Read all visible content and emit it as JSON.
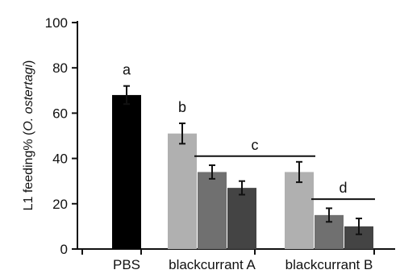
{
  "chart_data": {
    "type": "bar",
    "title": "",
    "xlabel": "",
    "ylabel": "L1 feeding% (",
    "ylabel_italic": "O. ostertagi",
    "ylabel_close": ")",
    "ylim": [
      0,
      100
    ],
    "yticks": [
      "0",
      "20",
      "40",
      "60",
      "80",
      "100"
    ],
    "groups": [
      {
        "label": "PBS"
      },
      {
        "label": "blackcurrant A"
      },
      {
        "label": "blackcurrant B"
      }
    ],
    "bars": [
      {
        "group": 0,
        "value": 68,
        "error": 4,
        "color": "#000000"
      },
      {
        "group": 1,
        "value": 51,
        "error": 4.5,
        "color": "#b0b0b0"
      },
      {
        "group": 1,
        "value": 34,
        "error": 3,
        "color": "#707070"
      },
      {
        "group": 1,
        "value": 27,
        "error": 3,
        "color": "#444444"
      },
      {
        "group": 2,
        "value": 34,
        "error": 4.5,
        "color": "#b0b0b0"
      },
      {
        "group": 2,
        "value": 15,
        "error": 3,
        "color": "#707070"
      },
      {
        "group": 2,
        "value": 10,
        "error": 3.5,
        "color": "#444444"
      }
    ],
    "significance": [
      {
        "label": "a",
        "bar": 0
      },
      {
        "label": "b",
        "bar": 1
      },
      {
        "label": "c",
        "from_bar": 2,
        "to_bar": 4,
        "line_value": 41
      },
      {
        "label": "d",
        "from_bar": 5,
        "to_bar": 6,
        "line_value": 22
      }
    ],
    "legend": "none",
    "grid": false
  }
}
